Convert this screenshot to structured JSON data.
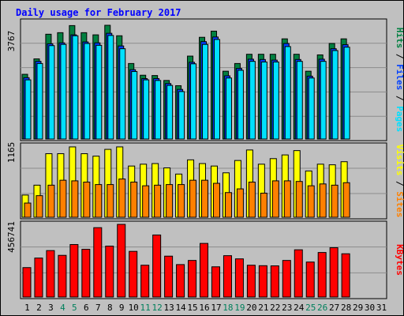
{
  "title": "Daily usage for February 2017",
  "colors": {
    "background": "#c0c0c0",
    "panel": "#c0c0c0",
    "grid": "#8c8c8c",
    "title": "#0000ff",
    "hits": "#008040",
    "files": "#0040ff",
    "pages": "#00e0ff",
    "visits": "#ffff00",
    "sites": "#ff8000",
    "kbytes": "#ff0000",
    "weekend_label": "#00805c",
    "weekday_label": "#000000"
  },
  "chart_data": [
    {
      "type": "bar",
      "panel": "hits-files-pages",
      "y_max_label": "3767",
      "ylim": [
        0,
        3767
      ],
      "grid": true,
      "legend": [
        {
          "name": "Pages",
          "color": "#00e0ff"
        },
        {
          "name": "Files",
          "color": "#0040ff"
        },
        {
          "name": "Hits",
          "color": "#008040"
        }
      ],
      "series": [
        {
          "name": "Hits",
          "values": [
            2100,
            2600,
            3400,
            3450,
            3680,
            3450,
            3380,
            3690,
            3350,
            2450,
            2070,
            2060,
            1900,
            1730,
            2690,
            3300,
            3500,
            2200,
            2450,
            2750,
            2750,
            2750,
            3250,
            2750,
            2200,
            2730,
            3100,
            3250,
            null,
            null,
            null
          ]
        },
        {
          "name": "Files",
          "values": [
            1990,
            2520,
            3090,
            3120,
            3380,
            3150,
            3120,
            3430,
            3020,
            2250,
            1960,
            1960,
            1800,
            1610,
            2490,
            3160,
            3310,
            2050,
            2290,
            2590,
            2580,
            2560,
            3100,
            2580,
            2040,
            2590,
            2930,
            3060,
            null,
            null,
            null
          ]
        },
        {
          "name": "Pages",
          "values": [
            1920,
            2450,
            3030,
            3070,
            3350,
            3100,
            3040,
            3360,
            2930,
            2190,
            1920,
            1900,
            1740,
            1540,
            2440,
            3070,
            3230,
            1980,
            2230,
            2520,
            2500,
            2500,
            3000,
            2520,
            1980,
            2520,
            2870,
            2980,
            null,
            null,
            null
          ]
        }
      ]
    },
    {
      "type": "bar",
      "panel": "visits-sites",
      "y_max_label": "1165",
      "ylim": [
        0,
        1165
      ],
      "grid": true,
      "legend": [
        {
          "name": "Sites",
          "color": "#ff8000"
        },
        {
          "name": "Visits",
          "color": "#ffff00"
        }
      ],
      "series": [
        {
          "name": "Visits",
          "values": [
            360,
            520,
            1030,
            1030,
            1140,
            1030,
            990,
            1100,
            1140,
            830,
            860,
            870,
            800,
            700,
            930,
            870,
            830,
            720,
            920,
            1090,
            860,
            950,
            1010,
            1080,
            750,
            860,
            850,
            900,
            null,
            null,
            null
          ]
        },
        {
          "name": "Sites",
          "values": [
            230,
            350,
            520,
            600,
            590,
            570,
            530,
            530,
            620,
            570,
            510,
            520,
            530,
            530,
            600,
            600,
            550,
            400,
            460,
            570,
            390,
            590,
            590,
            580,
            510,
            540,
            520,
            560,
            null,
            null,
            null
          ]
        }
      ]
    },
    {
      "type": "bar",
      "panel": "kbytes",
      "y_max_label": "456741",
      "ylim": [
        0,
        456741
      ],
      "grid": true,
      "legend": [
        {
          "name": "KBytes",
          "color": "#ff0000"
        }
      ],
      "series": [
        {
          "name": "KBytes",
          "values": [
            185000,
            245000,
            292000,
            262000,
            330000,
            300000,
            436000,
            320000,
            456741,
            287000,
            200000,
            390000,
            257000,
            204000,
            230000,
            337000,
            190000,
            260000,
            240000,
            200000,
            197000,
            196000,
            230000,
            297000,
            220000,
            280000,
            310000,
            272000,
            null,
            null,
            null
          ]
        }
      ]
    }
  ],
  "x_axis": {
    "days": [
      "1",
      "2",
      "3",
      "4",
      "5",
      "6",
      "7",
      "8",
      "9",
      "10",
      "11",
      "12",
      "13",
      "14",
      "15",
      "16",
      "17",
      "18",
      "19",
      "20",
      "21",
      "22",
      "23",
      "24",
      "25",
      "26",
      "27",
      "28",
      "29",
      "30",
      "31"
    ],
    "weekend": [
      false,
      false,
      false,
      true,
      true,
      false,
      false,
      false,
      false,
      false,
      true,
      true,
      false,
      false,
      false,
      false,
      false,
      true,
      true,
      false,
      false,
      false,
      false,
      false,
      true,
      true,
      false,
      false,
      false,
      false,
      false
    ]
  }
}
